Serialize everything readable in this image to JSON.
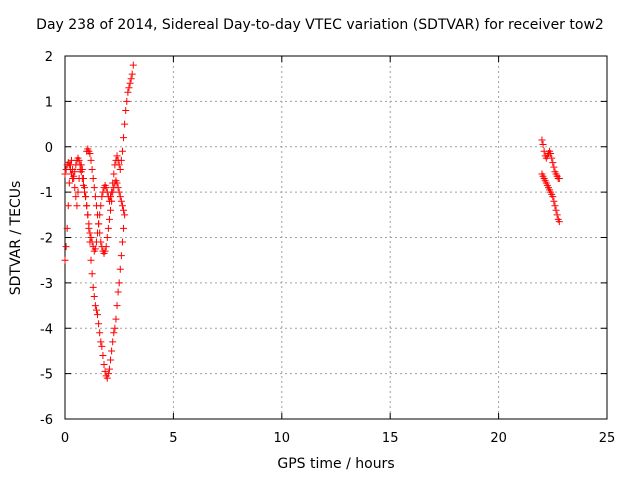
{
  "chart_data": {
    "type": "scatter",
    "title": "Day 238 of 2014, Sidereal Day-to-day VTEC variation (SDTVAR) for receiver tow2",
    "xlabel": "GPS time / hours",
    "ylabel": "SDTVAR / TECUs",
    "xlim": [
      0,
      25
    ],
    "ylim": [
      -6,
      2
    ],
    "xticks": [
      0,
      5,
      10,
      15,
      20,
      25
    ],
    "yticks": [
      -6,
      -5,
      -4,
      -3,
      -2,
      -1,
      0,
      1,
      2
    ],
    "grid": true,
    "marker": "plus",
    "color": "#ff0000",
    "series": [
      {
        "x": [
          0.0,
          0.05,
          0.1,
          0.15,
          0.2,
          0.25,
          0.3,
          0.35,
          0.4,
          0.45,
          0.5,
          0.55,
          0.6,
          0.65,
          0.7,
          0.75,
          0.8,
          0.85,
          0.9,
          0.95,
          1.0,
          1.05,
          1.1,
          1.15,
          1.2,
          1.25,
          1.3,
          1.35,
          1.4,
          1.45,
          1.5,
          1.55,
          1.6,
          1.65,
          1.7,
          1.75,
          1.8,
          1.85,
          1.9,
          1.95,
          2.0,
          2.05,
          2.1,
          2.15,
          2.2,
          2.25,
          2.3,
          2.35,
          2.4,
          2.45,
          2.5,
          2.55,
          2.6,
          2.65,
          2.7,
          2.75,
          2.8,
          2.85,
          2.9,
          2.95,
          3.0,
          3.05,
          3.1,
          3.15
        ],
        "y": [
          -2.5,
          -2.2,
          -1.8,
          -1.3,
          -0.8,
          -0.4,
          -0.3,
          -0.5,
          -0.7,
          -0.9,
          -1.1,
          -1.3,
          -1.0,
          -0.7,
          -0.5,
          -0.4,
          -0.5,
          -0.7,
          -0.9,
          -1.1,
          -1.3,
          -1.5,
          -1.7,
          -1.9,
          -2.0,
          -2.1,
          -2.2,
          -2.3,
          -2.25,
          -2.1,
          -1.9,
          -1.7,
          -1.5,
          -1.3,
          -1.1,
          -1.0,
          -0.9,
          -0.85,
          -0.9,
          -1.0,
          -1.1,
          -1.2,
          -1.1,
          -1.0,
          -0.8,
          -0.6,
          -0.4,
          -0.3,
          -0.2,
          -0.3,
          -0.4,
          -0.5,
          -0.3,
          -0.1,
          0.2,
          0.5,
          0.8,
          1.0,
          1.2,
          1.3,
          1.4,
          1.5,
          1.6,
          1.8
        ]
      },
      {
        "x": [
          0.0,
          0.05,
          0.1,
          0.15,
          0.2,
          0.25,
          0.3,
          0.35,
          0.4,
          0.45,
          0.5,
          0.55,
          0.6,
          0.65,
          0.7,
          0.75,
          0.8,
          0.85,
          0.9,
          0.95,
          1.0,
          1.05,
          1.1,
          1.15,
          1.2,
          1.25,
          1.3,
          1.35,
          1.4,
          1.45,
          1.5,
          1.55,
          1.6,
          1.65,
          1.7,
          1.75,
          1.8,
          1.85,
          1.9,
          1.95,
          2.0,
          2.05,
          2.1,
          2.15,
          2.2,
          2.25,
          2.3,
          2.35,
          2.4,
          2.45,
          2.5,
          2.55,
          2.6,
          2.65,
          2.7,
          2.75
        ],
        "y": [
          -0.6,
          -0.5,
          -0.4,
          -0.35,
          -0.4,
          -0.5,
          -0.6,
          -0.7,
          -0.65,
          -0.55,
          -0.4,
          -0.3,
          -0.25,
          -0.3,
          -0.4,
          -0.55,
          -0.7,
          -0.85,
          -1.0,
          -1.1,
          -1.3,
          -1.5,
          -1.8,
          -2.1,
          -2.5,
          -2.8,
          -3.1,
          -3.3,
          -3.5,
          -3.6,
          -3.7,
          -3.9,
          -4.1,
          -4.3,
          -4.4,
          -4.6,
          -4.8,
          -4.95,
          -5.05,
          -5.1,
          -5.0,
          -4.9,
          -4.7,
          -4.5,
          -4.3,
          -4.1,
          -4.0,
          -3.8,
          -3.5,
          -3.2,
          -3.0,
          -2.7,
          -2.4,
          -2.1,
          -1.8,
          -1.5
        ]
      },
      {
        "x": [
          1.0,
          1.05,
          1.1,
          1.15,
          1.2,
          1.25,
          1.3,
          1.35,
          1.4,
          1.45,
          1.5,
          1.55,
          1.6,
          1.65,
          1.7,
          1.75,
          1.8,
          1.85,
          1.9,
          1.95,
          2.0,
          2.05,
          2.1,
          2.15,
          2.2,
          2.25,
          2.3,
          2.35,
          2.4,
          2.45,
          2.5,
          2.55,
          2.6,
          2.65,
          2.7
        ],
        "y": [
          -0.1,
          -0.05,
          -0.1,
          -0.15,
          -0.3,
          -0.5,
          -0.7,
          -0.9,
          -1.1,
          -1.3,
          -1.5,
          -1.7,
          -1.9,
          -2.1,
          -2.2,
          -2.3,
          -2.35,
          -2.3,
          -2.2,
          -2.0,
          -1.8,
          -1.6,
          -1.4,
          -1.2,
          -1.0,
          -0.9,
          -0.8,
          -0.75,
          -0.8,
          -0.9,
          -1.0,
          -1.1,
          -1.2,
          -1.3,
          -1.4
        ]
      },
      {
        "x": [
          22.0,
          22.05,
          22.1,
          22.15,
          22.2,
          22.25,
          22.3,
          22.35,
          22.4,
          22.45,
          22.5,
          22.55,
          22.6,
          22.65,
          22.7,
          22.75,
          22.8
        ],
        "y": [
          0.15,
          0.05,
          -0.1,
          -0.2,
          -0.25,
          -0.2,
          -0.15,
          -0.1,
          -0.15,
          -0.25,
          -0.35,
          -0.45,
          -0.55,
          -0.6,
          -0.65,
          -0.7,
          -0.7
        ]
      },
      {
        "x": [
          22.0,
          22.05,
          22.1,
          22.15,
          22.2,
          22.25,
          22.3,
          22.35,
          22.4,
          22.45,
          22.5,
          22.55,
          22.6,
          22.65,
          22.7,
          22.75,
          22.8
        ],
        "y": [
          -0.6,
          -0.65,
          -0.7,
          -0.75,
          -0.8,
          -0.85,
          -0.9,
          -0.95,
          -1.0,
          -1.05,
          -1.1,
          -1.2,
          -1.3,
          -1.4,
          -1.5,
          -1.6,
          -1.65
        ]
      }
    ]
  }
}
